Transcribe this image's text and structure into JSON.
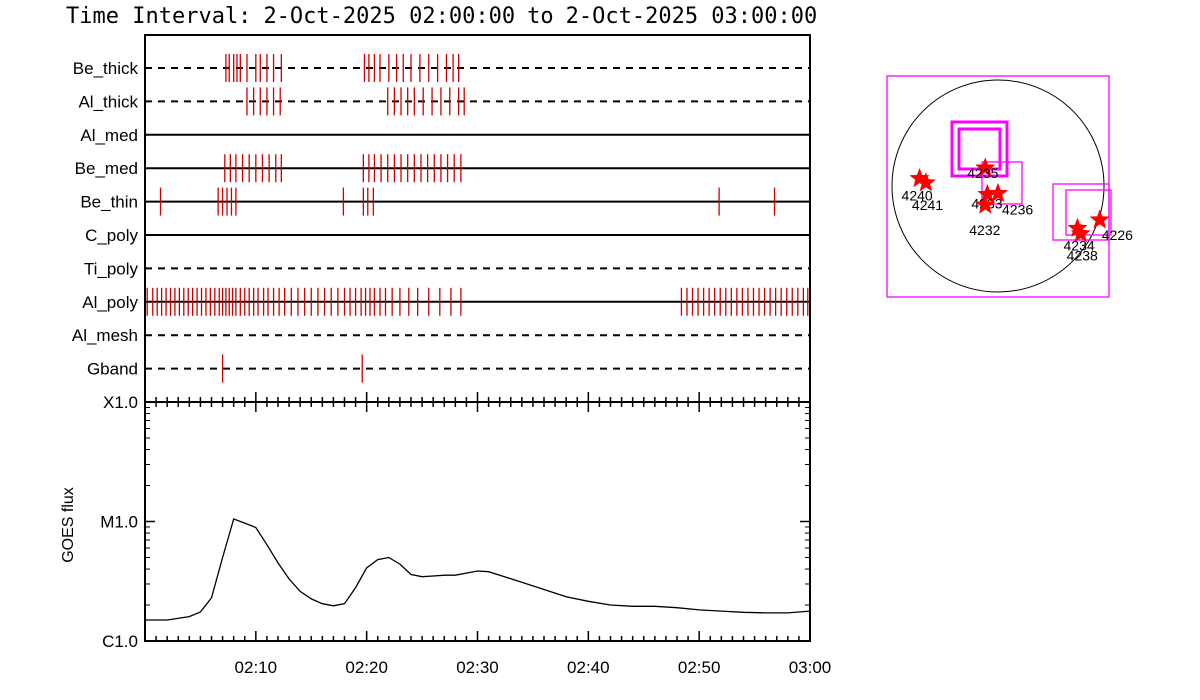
{
  "title": {
    "prefix": "Time Interval:",
    "start": "2-Oct-2025 02:00:00",
    "sep": "to",
    "end": "2-Oct-2025 03:00:00"
  },
  "colors": {
    "event_tick": "#cc0000",
    "fov_box": "#ff00ff",
    "star": "#ff0000",
    "axis": "#000000"
  },
  "chart_data": [
    {
      "type": "line",
      "subtype": "event-timeline",
      "time_range": [
        "02:00",
        "03:00"
      ],
      "rows": [
        {
          "name": "Be_thick",
          "line_style": "dashed",
          "events": [
            "02:07.3",
            "02:07.6",
            "02:08.0",
            "02:08.3",
            "02:08.6",
            "02:09.2",
            "02:10.0",
            "02:10.4",
            "02:11.0",
            "02:11.6",
            "02:12.3",
            "02:19.8",
            "02:20.2",
            "02:20.7",
            "02:21.2",
            "02:22.0",
            "02:22.7",
            "02:23.3",
            "02:24.0",
            "02:24.8",
            "02:25.6",
            "02:26.4",
            "02:27.2",
            "02:27.8",
            "02:28.3"
          ]
        },
        {
          "name": "Al_thick",
          "line_style": "dashed",
          "events": [
            "02:09.2",
            "02:09.8",
            "02:10.4",
            "02:11.0",
            "02:11.6",
            "02:12.2",
            "02:21.9",
            "02:22.5",
            "02:23.1",
            "02:23.7",
            "02:24.3",
            "02:25.1",
            "02:25.9",
            "02:26.7",
            "02:27.5",
            "02:28.3",
            "02:28.8"
          ]
        },
        {
          "name": "Al_med",
          "line_style": "solid",
          "events": []
        },
        {
          "name": "Be_med",
          "line_style": "solid",
          "events": [
            "02:07.2",
            "02:07.7",
            "02:08.2",
            "02:08.8",
            "02:09.4",
            "02:10.0",
            "02:10.6",
            "02:11.2",
            "02:11.8",
            "02:12.3",
            "02:19.7",
            "02:20.2",
            "02:20.7",
            "02:21.3",
            "02:21.9",
            "02:22.5",
            "02:23.1",
            "02:23.7",
            "02:24.3",
            "02:24.9",
            "02:25.5",
            "02:26.1",
            "02:26.7",
            "02:27.3",
            "02:27.9",
            "02:28.5"
          ]
        },
        {
          "name": "Be_thin",
          "line_style": "solid",
          "events": [
            "02:01.4",
            "02:06.6",
            "02:07.0",
            "02:07.4",
            "02:07.8",
            "02:08.2",
            "02:17.9",
            "02:19.7",
            "02:20.1",
            "02:20.6",
            "02:51.8",
            "02:56.8"
          ]
        },
        {
          "name": "C_poly",
          "line_style": "solid",
          "events": []
        },
        {
          "name": "Ti_poly",
          "line_style": "dashed",
          "events": []
        },
        {
          "name": "Al_poly",
          "line_style": "solid",
          "events": [
            "02:00.2",
            "02:00.7",
            "02:01.1",
            "02:01.5",
            "02:01.9",
            "02:02.3",
            "02:02.7",
            "02:03.1",
            "02:03.5",
            "02:03.9",
            "02:04.3",
            "02:04.7",
            "02:05.1",
            "02:05.5",
            "02:05.9",
            "02:06.3",
            "02:06.7",
            "02:07.0",
            "02:07.3",
            "02:07.6",
            "02:07.9",
            "02:08.2",
            "02:08.6",
            "02:09.0",
            "02:09.4",
            "02:09.8",
            "02:10.2",
            "02:10.7",
            "02:11.1",
            "02:11.6",
            "02:12.1",
            "02:12.6",
            "02:13.2",
            "02:13.8",
            "02:14.4",
            "02:15.0",
            "02:15.6",
            "02:16.2",
            "02:16.8",
            "02:17.4",
            "02:18.0",
            "02:18.5",
            "02:19.0",
            "02:19.5",
            "02:19.9",
            "02:20.3",
            "02:20.7",
            "02:21.2",
            "02:21.7",
            "02:22.3",
            "02:23.0",
            "02:23.8",
            "02:24.6",
            "02:25.6",
            "02:26.6",
            "02:27.6",
            "02:28.5",
            "02:48.4",
            "02:48.9",
            "02:49.4",
            "02:49.9",
            "02:50.4",
            "02:50.9",
            "02:51.4",
            "02:51.9",
            "02:52.4",
            "02:52.9",
            "02:53.4",
            "02:53.9",
            "02:54.4",
            "02:54.9",
            "02:55.4",
            "02:55.9",
            "02:56.4",
            "02:56.9",
            "02:57.4",
            "02:57.9",
            "02:58.4",
            "02:58.9",
            "02:59.4",
            "02:59.8"
          ]
        },
        {
          "name": "Al_mesh",
          "line_style": "dashed",
          "events": []
        },
        {
          "name": "Gband",
          "line_style": "dashed",
          "events": [
            "02:07.0",
            "02:19.6"
          ]
        }
      ]
    },
    {
      "type": "line",
      "ylabel": "GOES flux",
      "yscale": "log",
      "ylim": [
        "C1.0",
        "X1.0"
      ],
      "yticks": [
        "C1.0",
        "M1.0",
        "X1.0"
      ],
      "xticks": [
        "02:10",
        "02:20",
        "02:30",
        "02:40",
        "02:50",
        "03:00"
      ],
      "x": [
        "02:00",
        "02:02",
        "02:04",
        "02:05",
        "02:06",
        "02:07",
        "02:08",
        "02:09",
        "02:10",
        "02:11",
        "02:12",
        "02:13",
        "02:14",
        "02:15",
        "02:16",
        "02:17",
        "02:18",
        "02:19",
        "02:20",
        "02:21",
        "02:22",
        "02:23",
        "02:24",
        "02:25",
        "02:26",
        "02:27",
        "02:28",
        "02:29",
        "02:30",
        "02:31",
        "02:32",
        "02:34",
        "02:36",
        "02:38",
        "02:40",
        "02:42",
        "02:44",
        "02:46",
        "02:48",
        "02:50",
        "02:52",
        "02:54",
        "02:56",
        "02:58",
        "03:00"
      ],
      "values": [
        1.5e-06,
        1.5e-06,
        1.6e-06,
        1.75e-06,
        2.3e-06,
        5e-06,
        1.05e-05,
        9.7e-06,
        8.9e-06,
        6.4e-06,
        4.5e-06,
        3.3e-06,
        2.6e-06,
        2.25e-06,
        2.05e-06,
        1.97e-06,
        2.05e-06,
        2.8e-06,
        4.1e-06,
        4.8e-06,
        5e-06,
        4.4e-06,
        3.6e-06,
        3.45e-06,
        3.5e-06,
        3.55e-06,
        3.55e-06,
        3.7e-06,
        3.85e-06,
        3.8e-06,
        3.55e-06,
        3.1e-06,
        2.7e-06,
        2.35e-06,
        2.15e-06,
        2e-06,
        1.95e-06,
        1.95e-06,
        1.9e-06,
        1.82e-06,
        1.78e-06,
        1.74e-06,
        1.72e-06,
        1.72e-06,
        1.78e-06
      ]
    },
    {
      "type": "scatter",
      "subtype": "solar-disk-map",
      "active_regions": [
        {
          "label": "4240",
          "x": -0.74,
          "y": 0.07
        },
        {
          "label": "4241",
          "x": -0.68,
          "y": 0.03
        },
        {
          "label": "4235",
          "x": -0.12,
          "y": 0.17
        },
        {
          "label": "4233",
          "x": -0.1,
          "y": -0.08
        },
        {
          "label": "4236",
          "x": 0.0,
          "y": -0.07
        },
        {
          "label": "4232",
          "x": -0.12,
          "y": -0.18
        },
        {
          "label": "4234",
          "x": 0.75,
          "y": -0.4
        },
        {
          "label": "4238",
          "x": 0.78,
          "y": -0.45
        },
        {
          "label": "4226",
          "x": 0.96,
          "y": -0.32
        }
      ]
    }
  ]
}
